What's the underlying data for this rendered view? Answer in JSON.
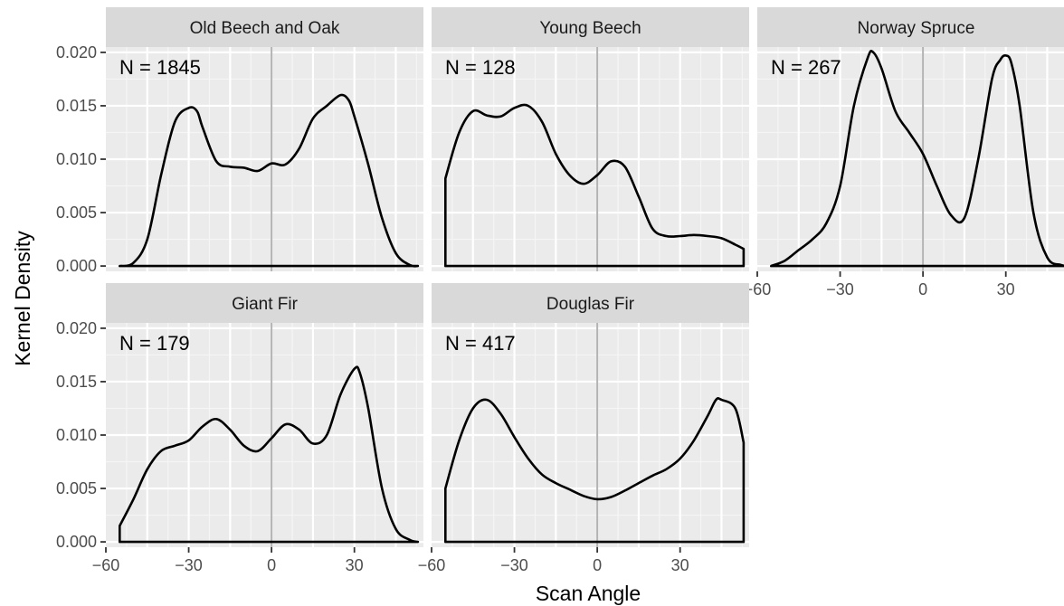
{
  "chart_data": {
    "type": "area",
    "xlabel": "Scan Angle",
    "ylabel": "Kernel Density",
    "xlim": [
      -60,
      55
    ],
    "ylim": [
      -0.0005,
      0.0205
    ],
    "x_ticks": [
      -60,
      -30,
      0,
      30
    ],
    "x_tick_labels": [
      "−60",
      "−30",
      "0",
      "30"
    ],
    "y_ticks": [
      0,
      0.005,
      0.01,
      0.015,
      0.02
    ],
    "y_tick_labels": [
      "0.000",
      "0.005",
      "0.010",
      "0.015",
      "0.020"
    ],
    "vline_x": 0,
    "grid": true,
    "panels": [
      {
        "title": "Old Beech and Oak",
        "n_label": "N = 1845",
        "x": [
          -55,
          -50,
          -45,
          -40,
          -35,
          -30,
          -27,
          -25,
          -20,
          -15,
          -10,
          -5,
          0,
          5,
          10,
          15,
          20,
          25,
          28,
          30,
          35,
          40,
          45,
          50,
          53
        ],
        "y": [
          0,
          0.0003,
          0.0025,
          0.0085,
          0.0135,
          0.0148,
          0.0145,
          0.013,
          0.0098,
          0.0093,
          0.0092,
          0.0089,
          0.0096,
          0.0095,
          0.011,
          0.0138,
          0.015,
          0.016,
          0.0155,
          0.014,
          0.0095,
          0.0045,
          0.0012,
          0.0001,
          0
        ]
      },
      {
        "title": "Young Beech",
        "n_label": "N = 128",
        "x": [
          -55,
          -50,
          -45,
          -40,
          -35,
          -30,
          -25,
          -20,
          -15,
          -10,
          -5,
          0,
          5,
          10,
          15,
          20,
          25,
          30,
          35,
          40,
          45,
          50,
          53
        ],
        "y": [
          0.0082,
          0.0125,
          0.0145,
          0.0141,
          0.014,
          0.0148,
          0.015,
          0.0135,
          0.0105,
          0.0085,
          0.0077,
          0.0085,
          0.0098,
          0.0093,
          0.0065,
          0.0035,
          0.0028,
          0.0028,
          0.0029,
          0.0028,
          0.0026,
          0.002,
          0.0016
        ]
      },
      {
        "title": "Norway Spruce",
        "n_label": "N = 267",
        "x": [
          -55,
          -50,
          -45,
          -40,
          -35,
          -30,
          -25,
          -20,
          -18,
          -15,
          -10,
          -5,
          0,
          5,
          10,
          15,
          20,
          25,
          28,
          30,
          32,
          35,
          40,
          45,
          50,
          53
        ],
        "y": [
          0,
          0.0005,
          0.0015,
          0.0025,
          0.004,
          0.0075,
          0.015,
          0.0195,
          0.02,
          0.0185,
          0.0145,
          0.0125,
          0.0105,
          0.0075,
          0.0048,
          0.0045,
          0.01,
          0.0175,
          0.0193,
          0.0197,
          0.019,
          0.015,
          0.005,
          0.0008,
          0.0001,
          0
        ]
      },
      {
        "title": "Giant Fir",
        "n_label": "N = 179",
        "x": [
          -55,
          -50,
          -45,
          -40,
          -35,
          -30,
          -25,
          -20,
          -15,
          -10,
          -5,
          0,
          5,
          10,
          15,
          20,
          25,
          30,
          32,
          35,
          40,
          45,
          50,
          53
        ],
        "y": [
          0.0015,
          0.004,
          0.0068,
          0.0085,
          0.009,
          0.0095,
          0.0108,
          0.0115,
          0.0105,
          0.009,
          0.0085,
          0.0097,
          0.011,
          0.0105,
          0.0092,
          0.01,
          0.0138,
          0.0162,
          0.0158,
          0.0125,
          0.005,
          0.0012,
          0.0002,
          0
        ]
      },
      {
        "title": "Douglas Fir",
        "n_label": "N = 417",
        "x": [
          -55,
          -50,
          -45,
          -40,
          -35,
          -30,
          -25,
          -20,
          -15,
          -10,
          -5,
          0,
          5,
          10,
          15,
          20,
          25,
          30,
          35,
          40,
          43,
          45,
          50,
          53
        ],
        "y": [
          0.005,
          0.0095,
          0.0125,
          0.0133,
          0.012,
          0.0098,
          0.0078,
          0.0063,
          0.0055,
          0.0049,
          0.0043,
          0.004,
          0.0042,
          0.0048,
          0.0055,
          0.0062,
          0.0068,
          0.0078,
          0.0095,
          0.0118,
          0.0133,
          0.0133,
          0.0125,
          0.0093
        ]
      }
    ]
  }
}
